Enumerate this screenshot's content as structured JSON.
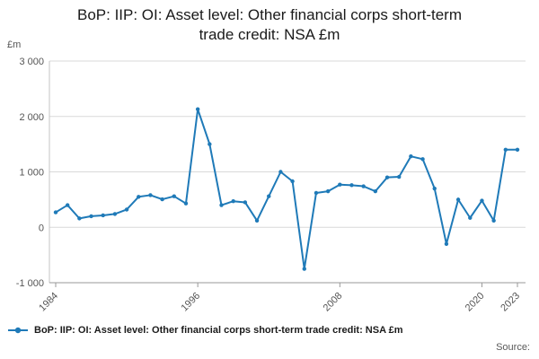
{
  "title": "BoP: IIP: OI: Asset level: Other financial corps short-term trade credit: NSA £m",
  "title_lines": {
    "line1": "BoP: IIP: OI: Asset level: Other financial corps short-term",
    "line2": "trade credit: NSA £m"
  },
  "legend": {
    "label": "BoP: IIP: OI: Asset level: Other financial corps short-term trade credit: NSA £m"
  },
  "source_label": "Source:",
  "chart_data": {
    "type": "line",
    "title": "BoP: IIP: OI: Asset level: Other financial corps short-term trade credit: NSA £m",
    "unit_label": "£m",
    "xlabel": "",
    "ylabel": "£m",
    "x": [
      1984,
      1985,
      1986,
      1987,
      1988,
      1989,
      1990,
      1991,
      1992,
      1993,
      1994,
      1995,
      1996,
      1997,
      1998,
      1999,
      2000,
      2001,
      2002,
      2003,
      2004,
      2005,
      2006,
      2007,
      2008,
      2009,
      2010,
      2011,
      2012,
      2013,
      2014,
      2015,
      2016,
      2017,
      2018,
      2019,
      2020,
      2021,
      2022,
      2023
    ],
    "series": [
      {
        "name": "BoP: IIP: OI: Asset level: Other financial corps short-term trade credit: NSA £m",
        "color": "#1f7ab8",
        "values": [
          270,
          400,
          160,
          200,
          215,
          240,
          320,
          550,
          580,
          505,
          560,
          430,
          2130,
          1500,
          400,
          470,
          450,
          120,
          560,
          1000,
          830,
          -750,
          620,
          650,
          770,
          760,
          740,
          650,
          900,
          910,
          1280,
          1230,
          700,
          -300,
          500,
          170,
          480,
          120,
          1400,
          1400
        ]
      }
    ],
    "x_ticks": [
      1984,
      1996,
      2008,
      2020,
      2023
    ],
    "y_ticks": [
      3000,
      2000,
      1000,
      0,
      -1000
    ],
    "y_tick_labels": [
      "3 000",
      "2 000",
      "1 000",
      "0",
      "-1 000"
    ],
    "ylim": [
      -1000,
      3000
    ],
    "xlim": [
      1984,
      2023
    ],
    "grid": "horizontal",
    "legend_position": "bottom-left",
    "colors": {
      "line": "#1f7ab8",
      "gridline": "#d9d9d9",
      "axis": "#999999",
      "tick_text": "#555555"
    }
  }
}
